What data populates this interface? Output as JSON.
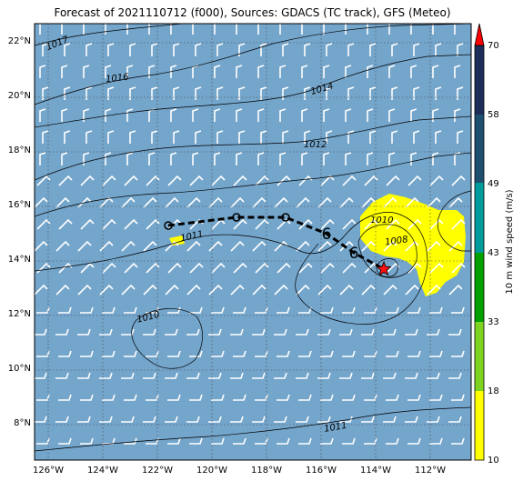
{
  "title": "Forecast of 2021110712 (f000), Sources: GDACS (TC track), GFS (Meteo)",
  "map": {
    "lon_range": [
      -126.5,
      -110.5
    ],
    "lat_range": [
      6.7,
      22.7
    ],
    "ocean_color": "#74a5cb",
    "lon_ticks": [
      "126°W",
      "124°W",
      "122°W",
      "120°W",
      "118°W",
      "116°W",
      "114°W",
      "112°W"
    ],
    "lat_ticks": [
      "22°N",
      "20°N",
      "18°N",
      "16°N",
      "14°N",
      "12°N",
      "10°N",
      "8°N"
    ],
    "contour_labels": [
      "1017",
      "1016",
      "1014",
      "1012",
      "1011",
      "1010",
      "1008",
      "1010",
      "1011"
    ]
  },
  "track": {
    "points": [
      [
        -121.6,
        15.3
      ],
      [
        -119.1,
        15.6
      ],
      [
        -117.3,
        15.6
      ],
      [
        -115.8,
        15.0
      ],
      [
        -114.8,
        14.3
      ],
      [
        -113.7,
        13.7
      ]
    ],
    "storm_symbols": [
      "6",
      "6"
    ],
    "current_marker": "red-star"
  },
  "colorbar": {
    "label": "10 m wind speed (m/s)",
    "ticks": [
      "70",
      "58",
      "49",
      "43",
      "33",
      "18",
      "10"
    ],
    "colors": [
      "#ffff00",
      "#7ed321",
      "#00a000",
      "#009b9b",
      "#1e4f6e",
      "#1c2d5a"
    ],
    "arrow_color": "#ff0000"
  },
  "wind_area_color": "#ffff00"
}
